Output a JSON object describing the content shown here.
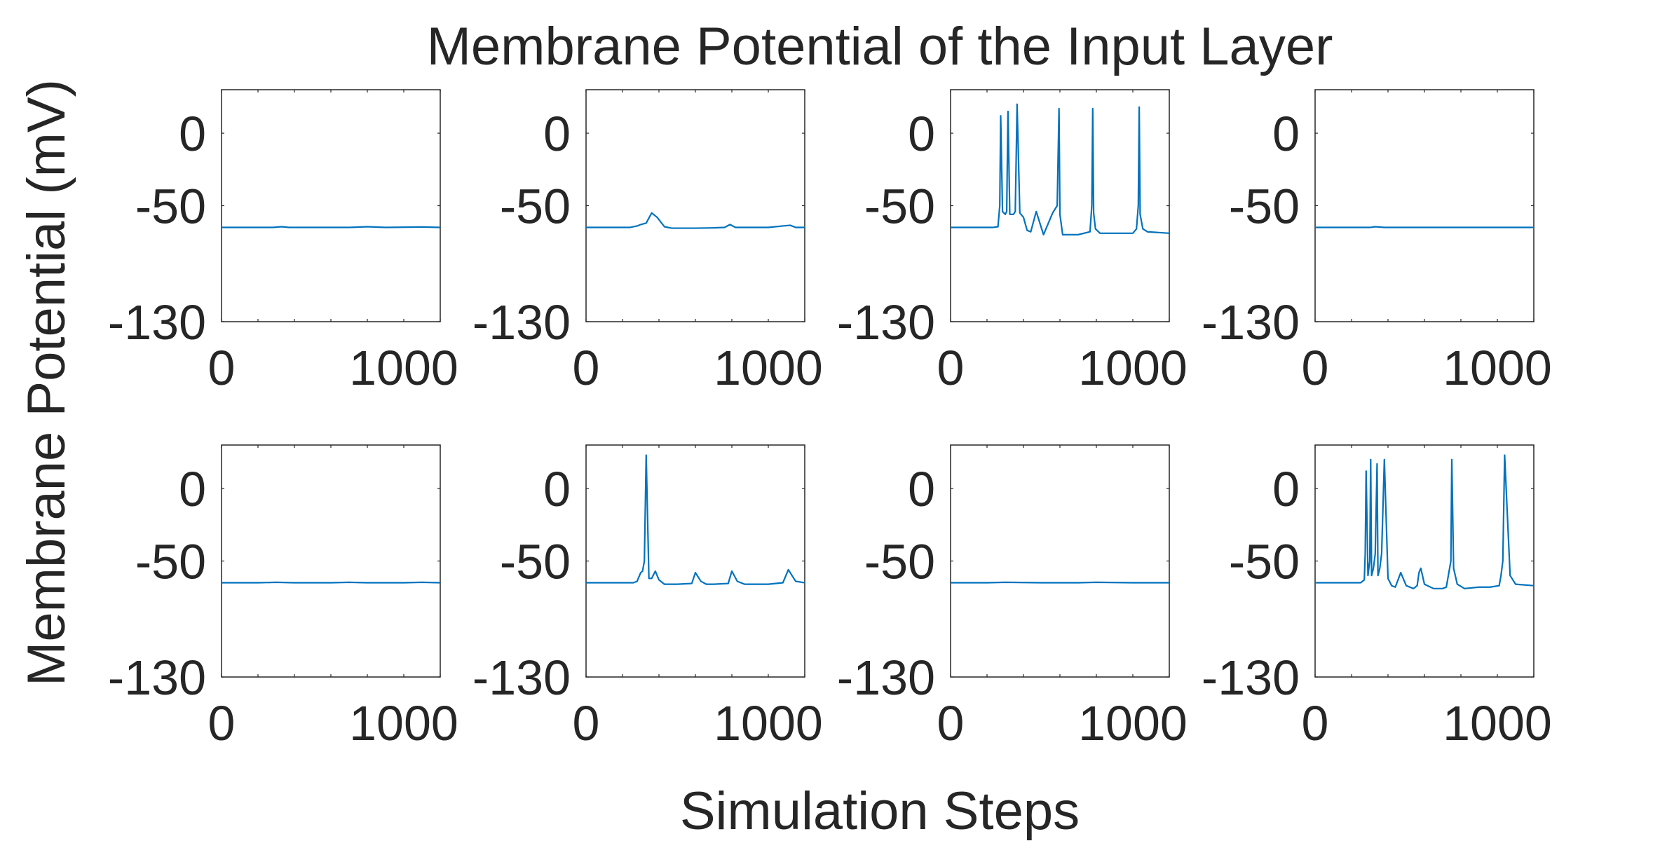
{
  "figure": {
    "title": "Membrane Potential of the Input Layer",
    "xlabel": "Simulation Steps",
    "ylabel": "Membrane Potential (mV)"
  },
  "style": {
    "line_color": "#0072BD",
    "axis_color": "#262626",
    "text_color": "#262626"
  },
  "chart_data": [
    {
      "type": "line",
      "ylim": [
        -130,
        30
      ],
      "xlim": [
        0,
        1200
      ],
      "yticks": [
        -130,
        -50,
        0
      ],
      "xticks": [
        0,
        1000
      ],
      "grid": false,
      "x": [
        0,
        150,
        280,
        330,
        370,
        500,
        700,
        800,
        900,
        1100,
        1200
      ],
      "y": [
        -65,
        -65,
        -65,
        -64.5,
        -65,
        -65,
        -65,
        -64.5,
        -65,
        -64.7,
        -65
      ]
    },
    {
      "type": "line",
      "ylim": [
        -130,
        30
      ],
      "xlim": [
        0,
        1200
      ],
      "yticks": [
        -130,
        -50,
        0
      ],
      "xticks": [
        0,
        1000
      ],
      "grid": false,
      "x": [
        0,
        240,
        280,
        300,
        330,
        360,
        390,
        430,
        470,
        500,
        600,
        700,
        760,
        790,
        820,
        900,
        1000,
        1080,
        1120,
        1150,
        1200
      ],
      "y": [
        -65,
        -65,
        -64,
        -63,
        -62,
        -55,
        -58,
        -64.5,
        -65.5,
        -65.5,
        -65.5,
        -65.3,
        -65,
        -63,
        -65,
        -65,
        -65,
        -64,
        -63.5,
        -65,
        -65
      ]
    },
    {
      "type": "line",
      "ylim": [
        -130,
        30
      ],
      "xlim": [
        0,
        1200
      ],
      "yticks": [
        -130,
        -50,
        0
      ],
      "xticks": [
        0,
        1000
      ],
      "grid": false,
      "x": [
        0,
        230,
        260,
        270,
        275,
        285,
        300,
        308,
        315,
        325,
        345,
        355,
        365,
        380,
        400,
        420,
        440,
        470,
        510,
        560,
        585,
        595,
        600,
        615,
        700,
        765,
        775,
        780,
        785,
        795,
        820,
        900,
        1000,
        1020,
        1030,
        1035,
        1040,
        1055,
        1080,
        1200
      ],
      "y": [
        -65,
        -65,
        -64.5,
        -50,
        12,
        -54,
        -56,
        -54,
        15,
        -56,
        -56,
        -54,
        20,
        -55,
        -58,
        -67,
        -68,
        -54,
        -70,
        -55,
        -50,
        17,
        -56,
        -70,
        -70,
        -68,
        -50,
        17,
        -55,
        -66,
        -69,
        -69,
        -69,
        -66,
        -50,
        18,
        -56,
        -66,
        -68,
        -69
      ]
    },
    {
      "type": "line",
      "ylim": [
        -130,
        30
      ],
      "xlim": [
        0,
        1200
      ],
      "yticks": [
        -130,
        -50,
        0
      ],
      "xticks": [
        0,
        1000
      ],
      "grid": false,
      "x": [
        0,
        200,
        300,
        330,
        380,
        500,
        700,
        900,
        1200
      ],
      "y": [
        -65,
        -65,
        -65,
        -64.5,
        -65,
        -65,
        -65,
        -65,
        -65
      ]
    },
    {
      "type": "line",
      "ylim": [
        -130,
        30
      ],
      "xlim": [
        0,
        1200
      ],
      "yticks": [
        -130,
        -50,
        0
      ],
      "xticks": [
        0,
        1000
      ],
      "grid": false,
      "x": [
        0,
        200,
        300,
        400,
        500,
        600,
        700,
        800,
        900,
        1000,
        1100,
        1200
      ],
      "y": [
        -65,
        -65,
        -64.7,
        -65,
        -65,
        -65,
        -64.7,
        -65,
        -65,
        -65,
        -64.7,
        -65
      ]
    },
    {
      "type": "line",
      "ylim": [
        -130,
        30
      ],
      "xlim": [
        0,
        1200
      ],
      "yticks": [
        -130,
        -50,
        0
      ],
      "xticks": [
        0,
        1000
      ],
      "grid": false,
      "x": [
        0,
        260,
        280,
        300,
        310,
        320,
        330,
        345,
        360,
        380,
        400,
        430,
        460,
        500,
        580,
        600,
        630,
        660,
        700,
        780,
        800,
        830,
        870,
        900,
        1000,
        1080,
        1110,
        1150,
        1200
      ],
      "y": [
        -65,
        -65,
        -64,
        -58,
        -57,
        -50,
        23,
        -62,
        -62,
        -57,
        -63,
        -66,
        -66,
        -66,
        -65.5,
        -58,
        -64,
        -66,
        -66,
        -65.5,
        -57,
        -64,
        -66,
        -66,
        -66,
        -65,
        -56,
        -64,
        -65
      ]
    },
    {
      "type": "line",
      "ylim": [
        -130,
        30
      ],
      "xlim": [
        0,
        1200
      ],
      "yticks": [
        -130,
        -50,
        0
      ],
      "xticks": [
        0,
        1000
      ],
      "grid": false,
      "x": [
        0,
        200,
        300,
        500,
        700,
        800,
        1000,
        1200
      ],
      "y": [
        -65,
        -65,
        -64.7,
        -65,
        -65,
        -64.7,
        -65,
        -65
      ]
    },
    {
      "type": "line",
      "ylim": [
        -130,
        30
      ],
      "xlim": [
        0,
        1200
      ],
      "yticks": [
        -130,
        -50,
        0
      ],
      "xticks": [
        0,
        1000
      ],
      "grid": false,
      "x": [
        0,
        250,
        270,
        275,
        280,
        290,
        300,
        305,
        310,
        320,
        330,
        340,
        345,
        355,
        365,
        380,
        400,
        420,
        440,
        470,
        500,
        540,
        560,
        570,
        580,
        600,
        650,
        700,
        720,
        745,
        750,
        760,
        780,
        820,
        900,
        960,
        1010,
        1020,
        1030,
        1040,
        1070,
        1100,
        1200
      ],
      "y": [
        -65,
        -65,
        -63,
        -45,
        12,
        -60,
        -50,
        20,
        -60,
        -55,
        -45,
        17,
        -60,
        -55,
        -45,
        20,
        -62,
        -67,
        -68,
        -58,
        -67,
        -69,
        -67,
        -58,
        -55,
        -66,
        -69,
        -69,
        -68,
        -50,
        20,
        -55,
        -66,
        -69,
        -68,
        -68,
        -67,
        -60,
        -50,
        23,
        -60,
        -66,
        -67
      ]
    }
  ]
}
